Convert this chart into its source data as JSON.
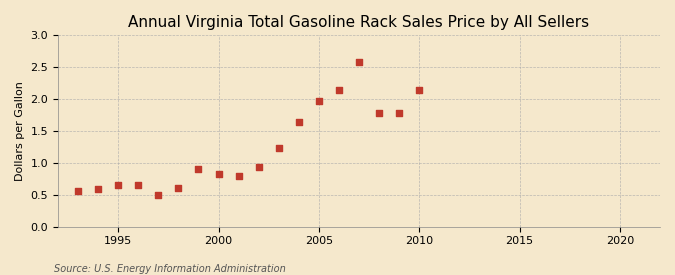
{
  "title": "Annual Virginia Total Gasoline Rack Sales Price by All Sellers",
  "ylabel": "Dollars per Gallon",
  "source": "Source: U.S. Energy Information Administration",
  "years": [
    1993,
    1994,
    1995,
    1996,
    1997,
    1998,
    1999,
    2000,
    2001,
    2002,
    2003,
    2004,
    2005,
    2006,
    2007,
    2008,
    2009,
    2010
  ],
  "values": [
    0.56,
    0.59,
    0.65,
    0.65,
    0.5,
    0.6,
    0.91,
    0.82,
    0.79,
    0.94,
    1.24,
    1.64,
    1.97,
    2.15,
    2.58,
    1.78,
    1.78,
    2.15
  ],
  "xlim": [
    1992,
    2022
  ],
  "ylim": [
    0.0,
    3.0
  ],
  "xticks": [
    1995,
    2000,
    2005,
    2010,
    2015,
    2020
  ],
  "yticks": [
    0.0,
    0.5,
    1.0,
    1.5,
    2.0,
    2.5,
    3.0
  ],
  "marker_color": "#c0392b",
  "marker": "s",
  "marker_size": 16,
  "background_color": "#f5e8cc",
  "grid_color": "#aaaaaa",
  "title_fontsize": 11,
  "label_fontsize": 8,
  "tick_fontsize": 8,
  "source_fontsize": 7
}
